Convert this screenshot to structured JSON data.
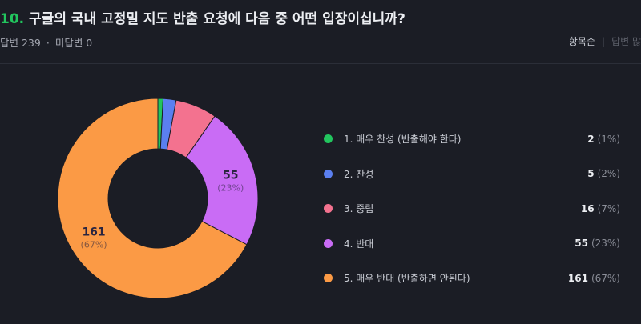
{
  "header": {
    "number": "10.",
    "question": "구글의 국내 고정밀 지도 반출 요청에 다음 중 어떤 입장이십니까?",
    "answered": "답변 239",
    "unanswered": "미답변 0",
    "separator": "·",
    "sort_item_order": "항목순",
    "sort_most_answers": "답변 많"
  },
  "chart_data": {
    "type": "pie",
    "donut": true,
    "categories": [
      "1. 매우 찬성 (반출해야 한다)",
      "2. 찬성",
      "3. 중립",
      "4. 반대",
      "5. 매우 반대 (반출하면 안된다)"
    ],
    "values": [
      2,
      5,
      16,
      55,
      161
    ],
    "percent_labels": [
      "(1%)",
      "(2%)",
      "(7%)",
      "(23%)",
      "(67%)"
    ],
    "colors": [
      "#22c55e",
      "#5b7ff0",
      "#f3728f",
      "#c96cf5",
      "#fb9a45"
    ],
    "legend": "right"
  }
}
